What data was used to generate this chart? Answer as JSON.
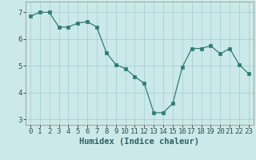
{
  "x": [
    0,
    1,
    2,
    3,
    4,
    5,
    6,
    7,
    8,
    9,
    10,
    11,
    12,
    13,
    14,
    15,
    16,
    17,
    18,
    19,
    20,
    21,
    22,
    23
  ],
  "y": [
    6.85,
    7.0,
    7.0,
    6.45,
    6.45,
    6.6,
    6.65,
    6.45,
    5.5,
    5.05,
    4.9,
    4.6,
    4.35,
    3.25,
    3.25,
    3.6,
    4.95,
    5.65,
    5.65,
    5.75,
    5.45,
    5.65,
    5.05,
    4.7
  ],
  "line_color": "#2e7d72",
  "marker": "s",
  "marker_size": 2.2,
  "bg_color": "#cce9e9",
  "grid_color": "#aad0d0",
  "xlabel": "Humidex (Indice chaleur)",
  "xlabel_fontsize": 7.5,
  "tick_fontsize": 6.5,
  "ylim": [
    2.8,
    7.4
  ],
  "xlim": [
    -0.5,
    23.5
  ],
  "yticks": [
    3,
    4,
    5,
    6,
    7
  ],
  "xticks": [
    0,
    1,
    2,
    3,
    4,
    5,
    6,
    7,
    8,
    9,
    10,
    11,
    12,
    13,
    14,
    15,
    16,
    17,
    18,
    19,
    20,
    21,
    22,
    23
  ]
}
